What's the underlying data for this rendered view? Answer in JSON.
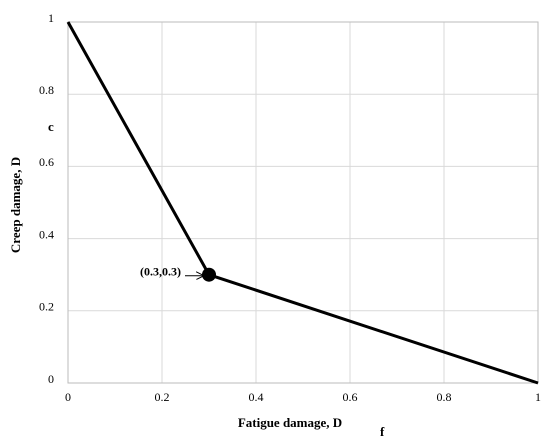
{
  "chart_data": {
    "type": "line",
    "xlabel": "Fatigue damage, D",
    "xlabel_subscript": "f",
    "ylabel": "Creep damage, D",
    "ylabel_subscript": "c",
    "x": [
      0,
      0.3,
      1
    ],
    "series": [
      {
        "color": "#000000",
        "values": [
          1,
          0.3,
          0
        ]
      }
    ],
    "annotations": [
      {
        "text": "(0.3,0.3)",
        "x": 0.3,
        "y": 0.3
      }
    ],
    "xlim": [
      0,
      1
    ],
    "ylim": [
      0,
      1
    ],
    "xticks": [
      0,
      0.2,
      0.4,
      0.6,
      0.8,
      1
    ],
    "yticks": [
      0,
      0.2,
      0.4,
      0.6,
      0.8,
      1
    ],
    "grid": true
  }
}
